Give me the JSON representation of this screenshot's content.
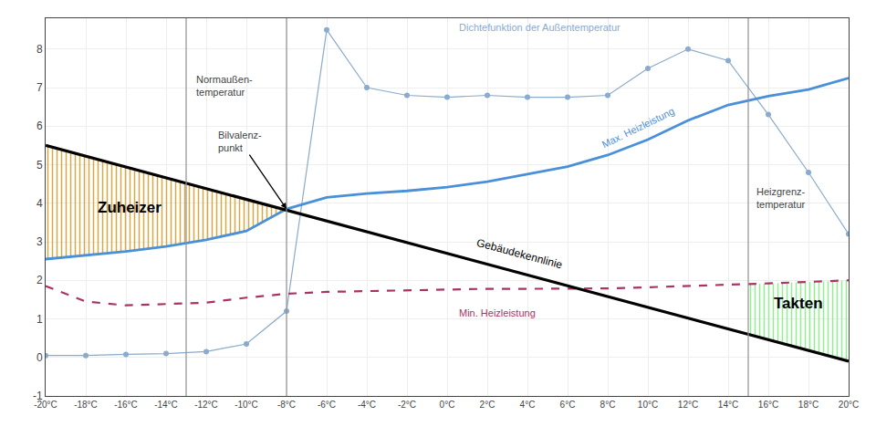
{
  "chart_data": {
    "type": "line",
    "series": [
      {
        "name": "Gebäudekennlinie",
        "color": "#000000",
        "x": [
          -20,
          20
        ],
        "values": [
          5.5,
          -0.1
        ]
      },
      {
        "name": "Max. Heizleistung",
        "color": "#4a90d9",
        "x": [
          -20,
          -18,
          -16,
          -14,
          -12,
          -10,
          -8,
          -6,
          -4,
          -2,
          0,
          2,
          4,
          6,
          8,
          10,
          12,
          14,
          16,
          18,
          20
        ],
        "values": [
          2.55,
          2.65,
          2.75,
          2.88,
          3.05,
          3.28,
          3.85,
          4.15,
          4.25,
          4.32,
          4.42,
          4.56,
          4.75,
          4.95,
          5.25,
          5.65,
          6.15,
          6.55,
          6.78,
          6.95,
          7.25
        ]
      },
      {
        "name": "Min. Heizleistung",
        "color": "#aa3366",
        "line_style": "dashed",
        "x": [
          -20,
          -18,
          -16,
          -14,
          -12,
          -10,
          -8,
          -6,
          -4,
          -2,
          0,
          2,
          4,
          6,
          8,
          10,
          12,
          14,
          16,
          18,
          20
        ],
        "values": [
          1.85,
          1.45,
          1.35,
          1.38,
          1.42,
          1.55,
          1.65,
          1.7,
          1.72,
          1.75,
          1.77,
          1.78,
          1.78,
          1.78,
          1.79,
          1.82,
          1.85,
          1.88,
          1.92,
          1.96,
          2.0
        ]
      },
      {
        "name": "Dichtefunktion der Außentemperatur",
        "color": "#8aabcc",
        "marker": "circle",
        "x": [
          -20,
          -18,
          -16,
          -14,
          -12,
          -10,
          -8,
          -6,
          -4,
          -2,
          0,
          2,
          4,
          6,
          8,
          10,
          12,
          14,
          16,
          18,
          20
        ],
        "values": [
          0.05,
          0.05,
          0.08,
          0.1,
          0.15,
          0.35,
          1.2,
          8.5,
          7.0,
          6.8,
          6.75,
          6.8,
          6.75,
          6.75,
          6.8,
          7.5,
          8.0,
          7.7,
          6.3,
          4.8,
          3.2
        ]
      }
    ],
    "vlines": [
      {
        "x": -13,
        "label": "Normaußen-\ntemperatur",
        "color": "#909090"
      },
      {
        "x": -8,
        "label": "Bilvalenz-\npunkt",
        "color": "#909090"
      },
      {
        "x": 15,
        "label": "Heizgrenz-\ntemperatur",
        "color": "#909090"
      }
    ],
    "regions": [
      {
        "name": "Zuheizer",
        "color": "#d4a843"
      },
      {
        "name": "Takten",
        "color": "#90ee90"
      }
    ],
    "xlim": [
      -20,
      20
    ],
    "xticks": [
      {
        "value": -20,
        "label": "-20°C"
      },
      {
        "value": -18,
        "label": "-18°C"
      },
      {
        "value": -16,
        "label": "-16°C"
      },
      {
        "value": -14,
        "label": "-14°C"
      },
      {
        "value": -12,
        "label": "-12°C"
      },
      {
        "value": -10,
        "label": "-10°C"
      },
      {
        "value": -8,
        "label": "-8°C"
      },
      {
        "value": -6,
        "label": "-6°C"
      },
      {
        "value": -4,
        "label": "-4°C"
      },
      {
        "value": -2,
        "label": "-2°C"
      },
      {
        "value": 0,
        "label": "0°C"
      },
      {
        "value": 2,
        "label": "2°C"
      },
      {
        "value": 4,
        "label": "4°C"
      },
      {
        "value": 6,
        "label": "6°C"
      },
      {
        "value": 8,
        "label": "8°C"
      },
      {
        "value": 10,
        "label": "10°C"
      },
      {
        "value": 12,
        "label": "12°C"
      },
      {
        "value": 14,
        "label": "14°C"
      },
      {
        "value": 16,
        "label": "16°C"
      },
      {
        "value": 18,
        "label": "18°C"
      },
      {
        "value": 20,
        "label": "20°C"
      }
    ],
    "ylim": [
      -1,
      8.8
    ],
    "yticks": [
      -1,
      0,
      1,
      2,
      3,
      4,
      5,
      6,
      7,
      8
    ],
    "grid": true
  }
}
